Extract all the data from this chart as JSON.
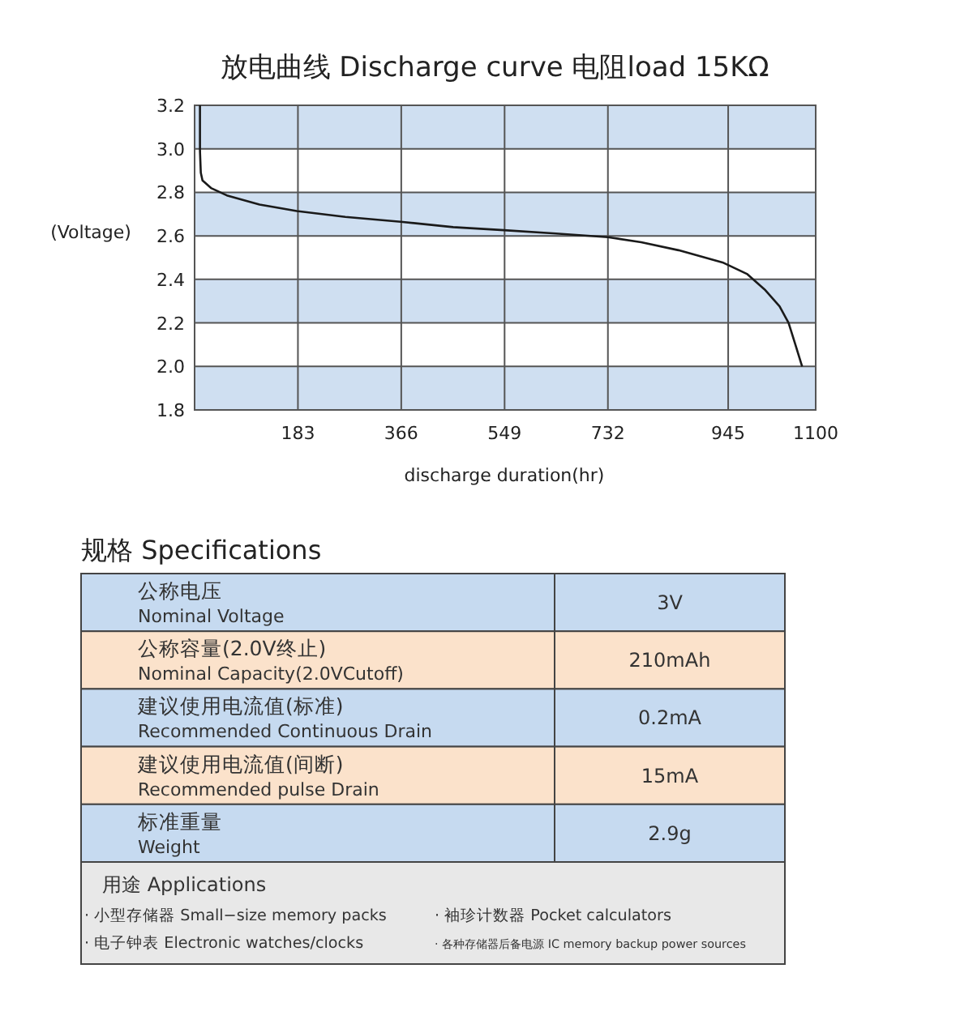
{
  "chart_data": [
    {
      "type": "line",
      "title": "放电曲线 Discharge curve 电阻load 15KΩ",
      "xlabel": "discharge duration(hr)",
      "ylabel": "(Voltage)",
      "xlim": [
        0,
        1100
      ],
      "ylim": [
        1.8,
        3.2
      ],
      "xticks": [
        183,
        366,
        549,
        732,
        945,
        1100
      ],
      "yticks": [
        1.8,
        {
          "value": 2.0,
          "label": "2.0"
        },
        2.2,
        2.4,
        2.6,
        2.8,
        {
          "value": 3.0,
          "label": "3.0"
        },
        3.2
      ],
      "grid": true,
      "marker": "none",
      "line_style": "solid",
      "bands": [
        {
          "axis": "y",
          "from": 1.8,
          "to": 2.0,
          "color": "#cfdff1"
        },
        {
          "axis": "y",
          "from": 2.2,
          "to": 2.4,
          "color": "#cfdff1"
        },
        {
          "axis": "y",
          "from": 2.6,
          "to": 2.8,
          "color": "#cfdff1"
        },
        {
          "axis": "y",
          "from": 3.0,
          "to": 3.2,
          "color": "#cfdff1"
        }
      ],
      "series": [
        {
          "color": "#1a1a1a",
          "x": [
            9.5,
            9.5,
            11,
            14,
            29,
            57,
            115,
            181,
            267,
            365,
            458,
            548,
            640,
            732,
            791,
            857,
            935,
            979,
            1011,
            1036,
            1052,
            1064,
            1076
          ],
          "values": [
            3.2,
            2.99,
            2.89,
            2.855,
            2.82,
            2.786,
            2.744,
            2.714,
            2.687,
            2.665,
            2.64,
            2.626,
            2.611,
            2.594,
            2.571,
            2.534,
            2.478,
            2.424,
            2.35,
            2.276,
            2.2,
            2.1,
            2.0
          ]
        }
      ]
    },
    {
      "type": "other",
      "title": "规格 Specifications",
      "annotations": [
        "公称电压",
        "Nominal Voltage",
        "3V",
        "公称容量(2.0V终止)",
        "Nominal Capacity(2.0VCutoff)",
        "210mAh",
        "建议使用电流值(标准)",
        "Recommended Continuous Drain",
        "0.2mA",
        "建议使用电流值(间断)",
        "Recommended pulse Drain",
        "15mA",
        "标准重量",
        "Weight",
        "2.9g",
        "用途 Applications",
        "· 小型存储器 Small−size memory packs",
        "· 袖珍计数器 Pocket calculators",
        "· 电子钟表  Electronic watches/clocks",
        "· 各种存储器后备电源 IC memory backup power sources"
      ]
    }
  ]
}
